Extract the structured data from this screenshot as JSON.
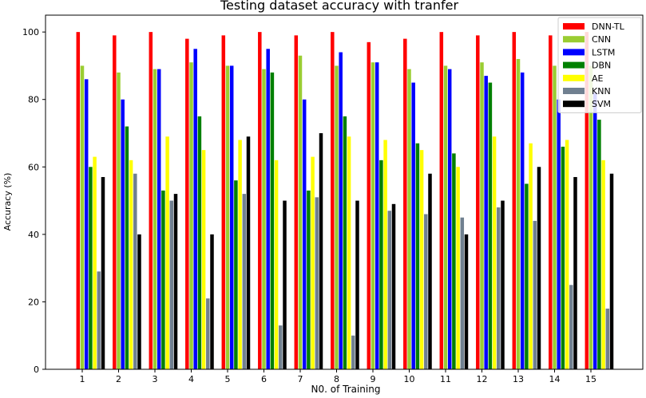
{
  "chart_data": {
    "type": "bar",
    "title": "Testing dataset accuracy with tranfer",
    "xlabel": "N0. of Training",
    "ylabel": "Accuracy (%)",
    "ylim": [
      0,
      105
    ],
    "yticks": [
      0,
      20,
      40,
      60,
      80,
      100
    ],
    "grid": false,
    "legend_position": "top-right",
    "categories": [
      "1",
      "2",
      "3",
      "4",
      "5",
      "6",
      "7",
      "8",
      "9",
      "10",
      "11",
      "12",
      "13",
      "14",
      "15"
    ],
    "series": [
      {
        "name": "DNN-TL",
        "color": "#ff0000",
        "values": [
          100,
          99,
          100,
          98,
          99,
          100,
          99,
          100,
          97,
          98,
          100,
          99,
          100,
          99,
          100
        ]
      },
      {
        "name": "CNN",
        "color": "#9acd32",
        "values": [
          90,
          88,
          89,
          91,
          90,
          89,
          93,
          90,
          91,
          89,
          90,
          91,
          92,
          90,
          90
        ]
      },
      {
        "name": "LSTM",
        "color": "#0000ff",
        "values": [
          86,
          80,
          89,
          95,
          90,
          95,
          80,
          94,
          91,
          85,
          89,
          87,
          88,
          80,
          82
        ]
      },
      {
        "name": "DBN",
        "color": "#008000",
        "values": [
          60,
          72,
          53,
          75,
          56,
          88,
          53,
          75,
          62,
          67,
          64,
          85,
          55,
          66,
          74
        ]
      },
      {
        "name": "AE",
        "color": "#ffff00",
        "values": [
          63,
          62,
          69,
          65,
          68,
          62,
          63,
          69,
          68,
          65,
          60,
          69,
          67,
          68,
          62
        ]
      },
      {
        "name": "KNN",
        "color": "#708090",
        "values": [
          29,
          58,
          50,
          21,
          52,
          13,
          51,
          10,
          47,
          46,
          45,
          48,
          44,
          25,
          18
        ]
      },
      {
        "name": "SVM",
        "color": "#000000",
        "values": [
          57,
          40,
          52,
          40,
          69,
          50,
          70,
          50,
          49,
          58,
          40,
          50,
          60,
          57,
          58
        ]
      }
    ]
  }
}
